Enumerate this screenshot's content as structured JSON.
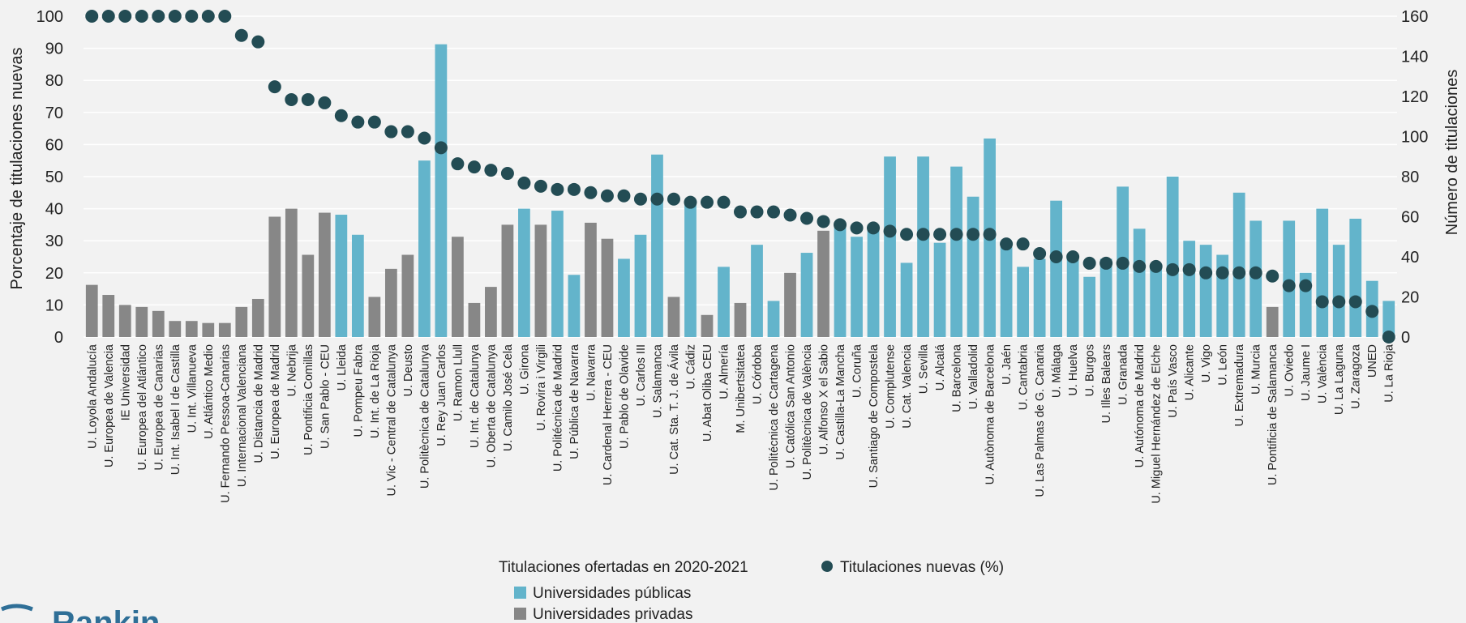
{
  "chart_data": {
    "type": "bar",
    "colors": {
      "public": "#63b4cb",
      "private": "#878787",
      "dot": "#234c54",
      "grid": "#ffffff"
    },
    "left_axis": {
      "label": "Porcentaje de titulaciones nuevas",
      "min": 0,
      "max": 100,
      "ticks": [
        "0",
        "10",
        "20",
        "30",
        "40",
        "50",
        "60",
        "70",
        "80",
        "90",
        "100"
      ]
    },
    "right_axis": {
      "label": "Número de titulaciones",
      "min": 0,
      "max": 160,
      "ticks": [
        "0",
        "20",
        "40",
        "60",
        "80",
        "100",
        "120",
        "140",
        "160"
      ]
    },
    "legend": {
      "group_title": "Titulaciones ofertadas en 2020-2021",
      "public_label": "Universidades públicas",
      "private_label": "Universidades privadas",
      "dot_label": "Titulaciones nuevas (%)",
      "placement": "bottom-center"
    },
    "categories": [
      "U. Loyola Andalucía",
      "U. Europea de Valencia",
      "IE Universidad",
      "U. Europea del Atlántico",
      "U. Europea de Canarias",
      "U. Int. Isabel I de Castilla",
      "U. Int. Villanueva",
      "U. Atlántico Medio",
      "U. Fernando Pessoa-Canarias",
      "U. Internacional Valenciana",
      "U. Distancia de Madrid",
      "U. Europea de Madrid",
      "U. Nebrija",
      "U. Pontificia Comillas",
      "U. San Pablo - CEU",
      "U. Lleida",
      "U. Pompeu Fabra",
      "U. Int. de La Rioja",
      "U. Vic - Central de Catalunya",
      "U. Deusto",
      "U. Politècnica de Catalunya",
      "U. Rey Juan Carlos",
      "U. Ramon Llull",
      "U. Int. de Catalunya",
      "U. Oberta de Catalunya",
      "U. Camilo José Cela",
      "U. Girona",
      "U. Rovira i Virgili",
      "U. Politécnica de Madrid",
      "U. Pública de Navarra",
      "U. Navarra",
      "U. Cardenal Herrera - CEU",
      "U. Pablo de Olavide",
      "U. Carlos III",
      "U. Salamanca",
      "U. Cat. Sta. T. J. de Ávila",
      "U. Cádiz",
      "U. Abat Oliba CEU",
      "U. Almería",
      "M. Unibertsitatea",
      "U. Córdoba",
      "U. Politécnica de Cartagena",
      "U. Católica San Antonio",
      "U. Politècnica de València",
      "U. Alfonso X el Sabio",
      "U. Castilla-La Mancha",
      "U. Coruña",
      "U. Santiago de Compostela",
      "U. Complutense",
      "U. Cat. Valencia",
      "U. Sevilla",
      "U. Alcalá",
      "U. Barcelona",
      "U. Valladolid",
      "U. Autònoma de Barcelona",
      "U. Jaén",
      "U. Cantabria",
      "U. Las Palmas de G. Canaria",
      "U. Málaga",
      "U. Huelva",
      "U. Burgos",
      "U. Illes Balears",
      "U. Granada",
      "U. Autónoma de Madrid",
      "U. Miguel Hernández de Elche",
      "U. País Vasco",
      "U. Alicante",
      "U. Vigo",
      "U. León",
      "U. Extremadura",
      "U. Murcia",
      "U. Pontificia de Salamanca",
      "U. Oviedo",
      "U. Jaume I",
      "U. València",
      "U. La Laguna",
      "U. Zaragoza",
      "UNED",
      "U. La Rioja"
    ],
    "sector": [
      "private",
      "private",
      "private",
      "private",
      "private",
      "private",
      "private",
      "private",
      "private",
      "private",
      "private",
      "private",
      "private",
      "private",
      "private",
      "public",
      "public",
      "private",
      "private",
      "private",
      "public",
      "public",
      "private",
      "private",
      "private",
      "private",
      "public",
      "private",
      "public",
      "public",
      "private",
      "private",
      "public",
      "public",
      "public",
      "private",
      "public",
      "private",
      "public",
      "private",
      "public",
      "public",
      "private",
      "public",
      "private",
      "public",
      "public",
      "public",
      "public",
      "public",
      "public",
      "public",
      "public",
      "public",
      "public",
      "public",
      "public",
      "public",
      "public",
      "public",
      "public",
      "public",
      "public",
      "public",
      "public",
      "public",
      "public",
      "public",
      "public",
      "public",
      "public",
      "private",
      "public",
      "public",
      "public",
      "public",
      "public",
      "public",
      "public"
    ],
    "titulaciones": [
      26,
      21,
      16,
      15,
      13,
      8,
      8,
      7,
      7,
      15,
      19,
      60,
      64,
      41,
      62,
      61,
      51,
      20,
      34,
      41,
      88,
      146,
      50,
      17,
      25,
      56,
      64,
      56,
      63,
      31,
      57,
      49,
      39,
      51,
      91,
      20,
      67,
      11,
      35,
      17,
      46,
      18,
      32,
      42,
      53,
      56,
      50,
      56,
      90,
      37,
      90,
      47,
      85,
      70,
      99,
      45,
      35,
      39,
      68,
      39,
      30,
      39,
      75,
      54,
      35,
      80,
      48,
      46,
      41,
      72,
      58,
      15,
      58,
      32,
      64,
      46,
      59,
      28,
      18
    ],
    "nuevas_pct": [
      100,
      100,
      100,
      100,
      100,
      100,
      100,
      100,
      100,
      94,
      92,
      78,
      74,
      74,
      73,
      69,
      67,
      67,
      64,
      64,
      62,
      59,
      54,
      53,
      52,
      51,
      48,
      47,
      46,
      46,
      45,
      44,
      44,
      43,
      43,
      43,
      42,
      42,
      42,
      39,
      39,
      39,
      38,
      37,
      36,
      35,
      34,
      34,
      33,
      32,
      32,
      32,
      32,
      32,
      32,
      29,
      29,
      26,
      25,
      25,
      23,
      23,
      23,
      22,
      22,
      21,
      21,
      20,
      20,
      20,
      20,
      19,
      16,
      16,
      11,
      11,
      11,
      8,
      0
    ]
  },
  "logo": {
    "text": "Rankin"
  }
}
